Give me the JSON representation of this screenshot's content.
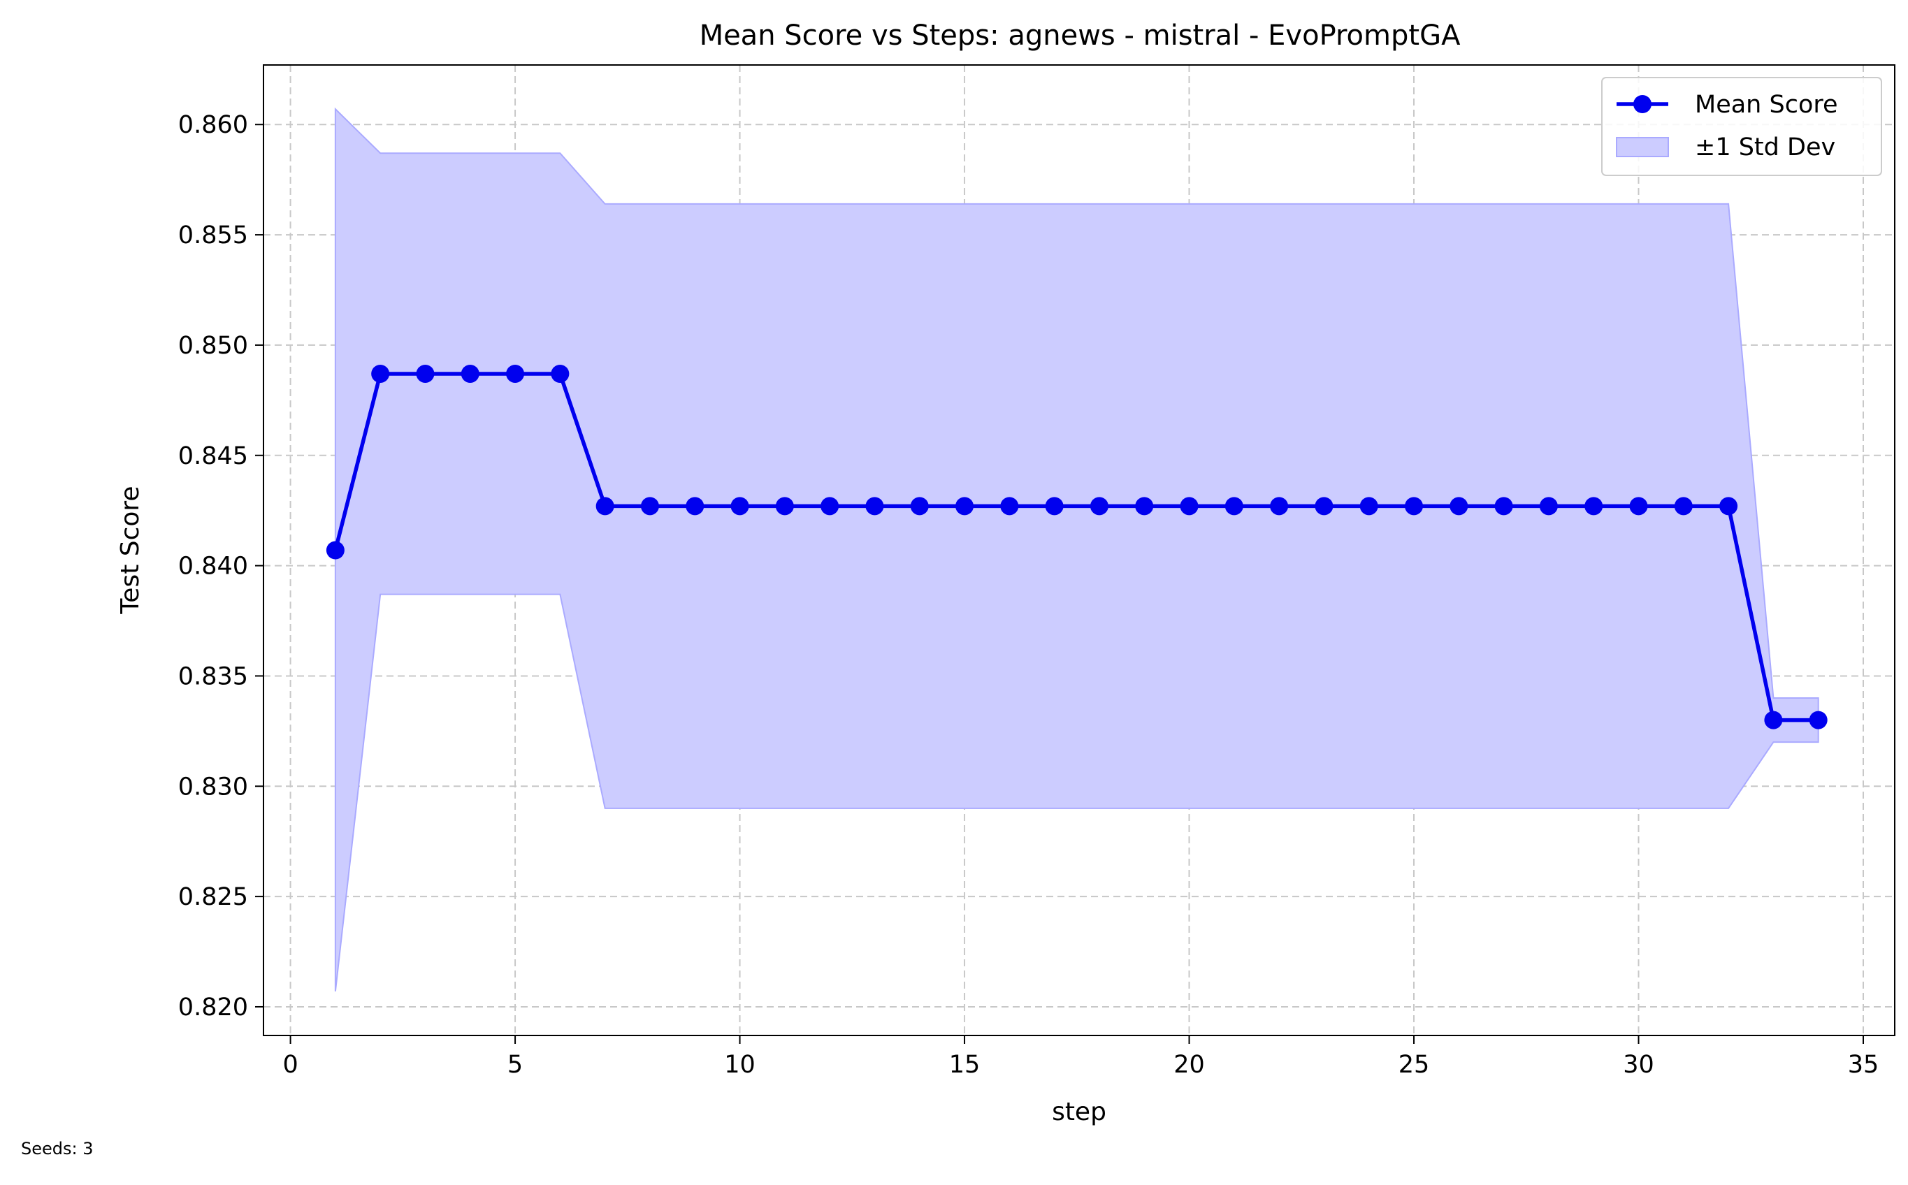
{
  "footnote": "Seeds: 3",
  "colors": {
    "line": "#0000ee",
    "band": "#ccccff",
    "band_edge": "#aaaaff"
  },
  "chart_data": {
    "type": "line",
    "title": "Mean Score vs Steps: agnews - mistral - EvoPromptGA",
    "xlabel": "step",
    "ylabel": "Test Score",
    "xlim": [
      -0.6,
      35.7
    ],
    "ylim": [
      0.8187,
      0.8627
    ],
    "xticks": [
      0,
      5,
      10,
      15,
      20,
      25,
      30,
      35
    ],
    "yticks": [
      0.82,
      0.825,
      0.83,
      0.835,
      0.84,
      0.845,
      0.85,
      0.855,
      0.86
    ],
    "grid": true,
    "legend_position": "top-right",
    "x": [
      1,
      2,
      3,
      4,
      5,
      6,
      7,
      8,
      9,
      10,
      11,
      12,
      13,
      14,
      15,
      16,
      17,
      18,
      19,
      20,
      21,
      22,
      23,
      24,
      25,
      26,
      27,
      28,
      29,
      30,
      31,
      32,
      33,
      34
    ],
    "series": [
      {
        "name": "Mean Score",
        "values": [
          0.8407,
          0.8487,
          0.8487,
          0.8487,
          0.8487,
          0.8487,
          0.8427,
          0.8427,
          0.8427,
          0.8427,
          0.8427,
          0.8427,
          0.8427,
          0.8427,
          0.8427,
          0.8427,
          0.8427,
          0.8427,
          0.8427,
          0.8427,
          0.8427,
          0.8427,
          0.8427,
          0.8427,
          0.8427,
          0.8427,
          0.8427,
          0.8427,
          0.8427,
          0.8427,
          0.8427,
          0.8427,
          0.833,
          0.833
        ]
      },
      {
        "name": "±1 Std Dev",
        "upper": [
          0.8607,
          0.8587,
          0.8587,
          0.8587,
          0.8587,
          0.8587,
          0.8564,
          0.8564,
          0.8564,
          0.8564,
          0.8564,
          0.8564,
          0.8564,
          0.8564,
          0.8564,
          0.8564,
          0.8564,
          0.8564,
          0.8564,
          0.8564,
          0.8564,
          0.8564,
          0.8564,
          0.8564,
          0.8564,
          0.8564,
          0.8564,
          0.8564,
          0.8564,
          0.8564,
          0.8564,
          0.8564,
          0.834,
          0.834
        ],
        "lower": [
          0.8207,
          0.8387,
          0.8387,
          0.8387,
          0.8387,
          0.8387,
          0.829,
          0.829,
          0.829,
          0.829,
          0.829,
          0.829,
          0.829,
          0.829,
          0.829,
          0.829,
          0.829,
          0.829,
          0.829,
          0.829,
          0.829,
          0.829,
          0.829,
          0.829,
          0.829,
          0.829,
          0.829,
          0.829,
          0.829,
          0.829,
          0.829,
          0.829,
          0.832,
          0.832
        ]
      }
    ]
  }
}
